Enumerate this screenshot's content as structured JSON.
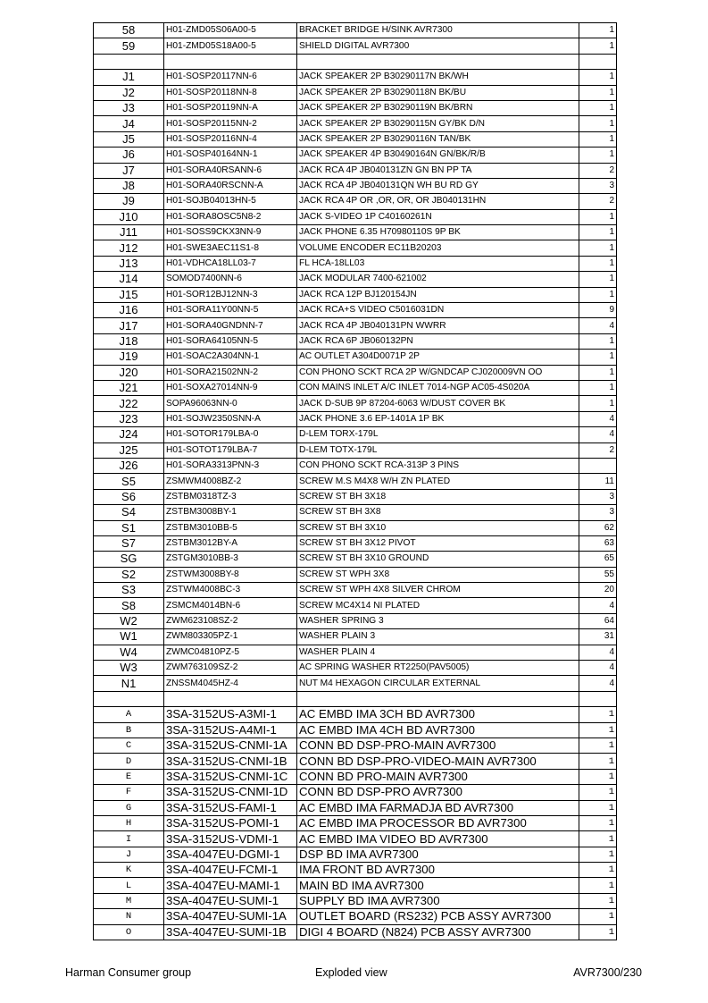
{
  "table": {
    "rows": [
      {
        "ref": "58",
        "part": "H01-ZMD05S06A00-5",
        "desc": "BRACKET BRIDGE H/SINK AVR7300",
        "qty": "1"
      },
      {
        "ref": "59",
        "part": "H01-ZMD05S18A00-5",
        "desc": "SHIELD DIGITAL AVR7300",
        "qty": "1"
      },
      {
        "ref": "",
        "part": "",
        "desc": "",
        "qty": ""
      },
      {
        "ref": "J1",
        "part": "H01-SOSP20117NN-6",
        "desc": "JACK SPEAKER 2P B30290117N BK/WH",
        "qty": "1"
      },
      {
        "ref": "J2",
        "part": "H01-SOSP20118NN-8",
        "desc": "JACK SPEAKER 2P B30290118N BK/BU",
        "qty": "1"
      },
      {
        "ref": "J3",
        "part": "H01-SOSP20119NN-A",
        "desc": "JACK SPEAKER 2P B30290119N BK/BRN",
        "qty": "1"
      },
      {
        "ref": "J4",
        "part": "H01-SOSP20115NN-2",
        "desc": "JACK SPEAKER 2P B30290115N GY/BK D/N",
        "qty": "1"
      },
      {
        "ref": "J5",
        "part": "H01-SOSP20116NN-4",
        "desc": "JACK SPEAKER 2P B30290116N TAN/BK",
        "qty": "1"
      },
      {
        "ref": "J6",
        "part": "H01-SOSP40164NN-1",
        "desc": "JACK SPEAKER 4P B30490164N GN/BK/R/B",
        "qty": "1"
      },
      {
        "ref": "J7",
        "part": "H01-SORA40RSANN-6",
        "desc": "JACK RCA 4P JB040131ZN GN BN PP TA",
        "qty": "2"
      },
      {
        "ref": "J8",
        "part": "H01-SORA40RSCNN-A",
        "desc": "JACK RCA 4P JB040131QN WH BU RD GY",
        "qty": "3"
      },
      {
        "ref": "J9",
        "part": "H01-SOJB04013HN-5",
        "desc": "JACK RCA 4P OR ,OR, OR, OR JB040131HN",
        "qty": "2"
      },
      {
        "ref": "J10",
        "part": "H01-SORA8OSC5N8-2",
        "desc": "JACK S-VIDEO 1P C40160261N",
        "qty": "1"
      },
      {
        "ref": "J11",
        "part": "H01-SOSS9CKX3NN-9",
        "desc": "JACK PHONE 6.35 H70980110S 9P BK",
        "qty": "1"
      },
      {
        "ref": "J12",
        "part": "H01-SWE3AEC11S1-8",
        "desc": "VOLUME ENCODER EC11B20203",
        "qty": "1"
      },
      {
        "ref": "J13",
        "part": "H01-VDHCA18LL03-7",
        "desc": "FL HCA-18LL03",
        "qty": "1"
      },
      {
        "ref": "J14",
        "part": "SOMOD7400NN-6",
        "desc": "JACK MODULAR 7400-621002",
        "qty": "1"
      },
      {
        "ref": "J15",
        "part": "H01-SOR12BJ12NN-3",
        "desc": "JACK RCA 12P BJ120154JN",
        "qty": "1"
      },
      {
        "ref": "J16",
        "part": "H01-SORA11Y00NN-5",
        "desc": "JACK RCA+S VIDEO C5016031DN",
        "qty": "9"
      },
      {
        "ref": "J17",
        "part": "H01-SORA40GNDNN-7",
        "desc": "JACK RCA 4P JB040131PN WWRR",
        "qty": "4"
      },
      {
        "ref": "J18",
        "part": "H01-SORA64105NN-5",
        "desc": "JACK RCA 6P JB060132PN",
        "qty": "1"
      },
      {
        "ref": "J19",
        "part": "H01-SOAC2A304NN-1",
        "desc": "AC OUTLET A304D0071P 2P",
        "qty": "1"
      },
      {
        "ref": "J20",
        "part": "H01-SORA21502NN-2",
        "desc": "CON PHONO SCKT RCA 2P W/GNDCAP CJ020009VN OO",
        "qty": "1"
      },
      {
        "ref": "J21",
        "part": "H01-SOXA27014NN-9",
        "desc": "CON MAINS INLET A/C INLET 7014-NGP AC05-4S020A",
        "qty": "1"
      },
      {
        "ref": "J22",
        "part": "SOPA96063NN-0",
        "desc": "JACK D-SUB  9P 87204-6063 W/DUST COVER BK",
        "qty": "1"
      },
      {
        "ref": "J23",
        "part": "H01-SOJW2350SNN-A",
        "desc": "JACK PHONE 3.6 EP-1401A 1P BK",
        "qty": "4"
      },
      {
        "ref": "J24",
        "part": "H01-SOTOR179LBA-0",
        "desc": "D-LEM TORX-179L",
        "qty": "4"
      },
      {
        "ref": "J25",
        "part": "H01-SOTOT179LBA-7",
        "desc": "D-LEM TOTX-179L",
        "qty": "2"
      },
      {
        "ref": "J26",
        "part": "H01-SORA3313PNN-3",
        "desc": "CON PHONO SCKT RCA-313P 3 PINS",
        "qty": ""
      },
      {
        "ref": "S5",
        "part": "ZSMWM4008BZ-2",
        "desc": "SCREW M.S M4X8 W/H ZN PLATED",
        "qty": "11"
      },
      {
        "ref": "S6",
        "part": "ZSTBM0318TZ-3",
        "desc": "SCREW ST BH 3X18",
        "qty": "3"
      },
      {
        "ref": "S4",
        "part": "ZSTBM3008BY-1",
        "desc": "SCREW ST    BH 3X8",
        "qty": "3"
      },
      {
        "ref": "S1",
        "part": "ZSTBM3010BB-5",
        "desc": "SCREW ST    BH 3X10",
        "qty": "62"
      },
      {
        "ref": "S7",
        "part": "ZSTBM3012BY-A",
        "desc": "SCREW ST BH 3X12 PIVOT",
        "qty": "63"
      },
      {
        "ref": "SG",
        "part": "ZSTGM3010BB-3",
        "desc": "SCREW ST BH 3X10 GROUND",
        "qty": "65"
      },
      {
        "ref": "S2",
        "part": "ZSTWM3008BY-8",
        "desc": "SCREW ST WPH 3X8",
        "qty": "55"
      },
      {
        "ref": "S3",
        "part": "ZSTWM4008BC-3",
        "desc": "SCREW ST WPH 4X8 SILVER CHROM",
        "qty": "20"
      },
      {
        "ref": "S8",
        "part": "ZSMCM4014BN-6",
        "desc": "SCREW MC4X14 NI PLATED",
        "qty": "4"
      },
      {
        "ref": "W2",
        "part": "ZWM623108SZ-2",
        "desc": "WASHER SPRING 3",
        "qty": "64"
      },
      {
        "ref": "W1",
        "part": "ZWM803305PZ-1",
        "desc": "WASHER PLAIN 3",
        "qty": "31"
      },
      {
        "ref": "W4",
        "part": "ZWMC04810PZ-5",
        "desc": "WASHER PLAIN 4",
        "qty": "4"
      },
      {
        "ref": "W3",
        "part": "ZWM763109SZ-2",
        "desc": "AC SPRING WASHER RT2250(PAV5005)",
        "qty": "4"
      },
      {
        "ref": "N1",
        "part": "ZNSSM4045HZ-4",
        "desc": "NUT  M4 HEXAGON CIRCULAR EXTERNAL",
        "qty": "4"
      },
      {
        "ref": "",
        "part": "",
        "desc": "",
        "qty": ""
      },
      {
        "ref": "A",
        "part": "3SA-3152US-A3MI-1",
        "desc": "AC EMBD IMA 3CH BD AVR7300",
        "qty": "1",
        "big": true
      },
      {
        "ref": "B",
        "part": "3SA-3152US-A4MI-1",
        "desc": "AC EMBD IMA 4CH BD AVR7300",
        "qty": "1",
        "big": true
      },
      {
        "ref": "C",
        "part": "3SA-3152US-CNMI-1A",
        "desc": "CONN BD DSP-PRO-MAIN  AVR7300",
        "qty": "1",
        "big": true
      },
      {
        "ref": "D",
        "part": "3SA-3152US-CNMI-1B",
        "desc": "CONN BD DSP-PRO-VIDEO-MAIN  AVR7300",
        "qty": "1",
        "big": true
      },
      {
        "ref": "E",
        "part": "3SA-3152US-CNMI-1C",
        "desc": "CONN BD PRO-MAIN  AVR7300",
        "qty": "1",
        "big": true
      },
      {
        "ref": "F",
        "part": "3SA-3152US-CNMI-1D",
        "desc": "CONN BD DSP-PRO  AVR7300",
        "qty": "1",
        "big": true
      },
      {
        "ref": "G",
        "part": "3SA-3152US-FAMI-1",
        "desc": "AC EMBD IMA FARMADJA BD AVR7300",
        "qty": "1",
        "big": true
      },
      {
        "ref": "H",
        "part": "3SA-3152US-POMI-1",
        "desc": "AC EMBD IMA PROCESSOR BD AVR7300",
        "qty": "1",
        "big": true
      },
      {
        "ref": "I",
        "part": "3SA-3152US-VDMI-1",
        "desc": "AC EMBD IMA VIDEO BD AVR7300",
        "qty": "1",
        "big": true
      },
      {
        "ref": "J",
        "part": "3SA-4047EU-DGMI-1",
        "desc": "DSP BD IMA AVR7300",
        "qty": "1",
        "big": true
      },
      {
        "ref": "K",
        "part": "3SA-4047EU-FCMI-1",
        "desc": "IMA FRONT BD AVR7300",
        "qty": "1",
        "big": true
      },
      {
        "ref": "L",
        "part": "3SA-4047EU-MAMI-1",
        "desc": "MAIN BD IMA AVR7300",
        "qty": "1",
        "big": true
      },
      {
        "ref": "M",
        "part": "3SA-4047EU-SUMI-1",
        "desc": "SUPPLY BD IMA AVR7300",
        "qty": "1",
        "big": true
      },
      {
        "ref": "N",
        "part": "3SA-4047EU-SUMI-1A",
        "desc": "OUTLET BOARD (RS232) PCB ASSY AVR7300",
        "qty": "1",
        "big": true
      },
      {
        "ref": "O",
        "part": "3SA-4047EU-SUMI-1B",
        "desc": "DIGI 4 BOARD (N824) PCB ASSY AVR7300",
        "qty": "1",
        "big": true
      }
    ]
  },
  "footer": {
    "left": "Harman Consumer group",
    "center": "Exploded view",
    "right": "AVR7300/230"
  }
}
